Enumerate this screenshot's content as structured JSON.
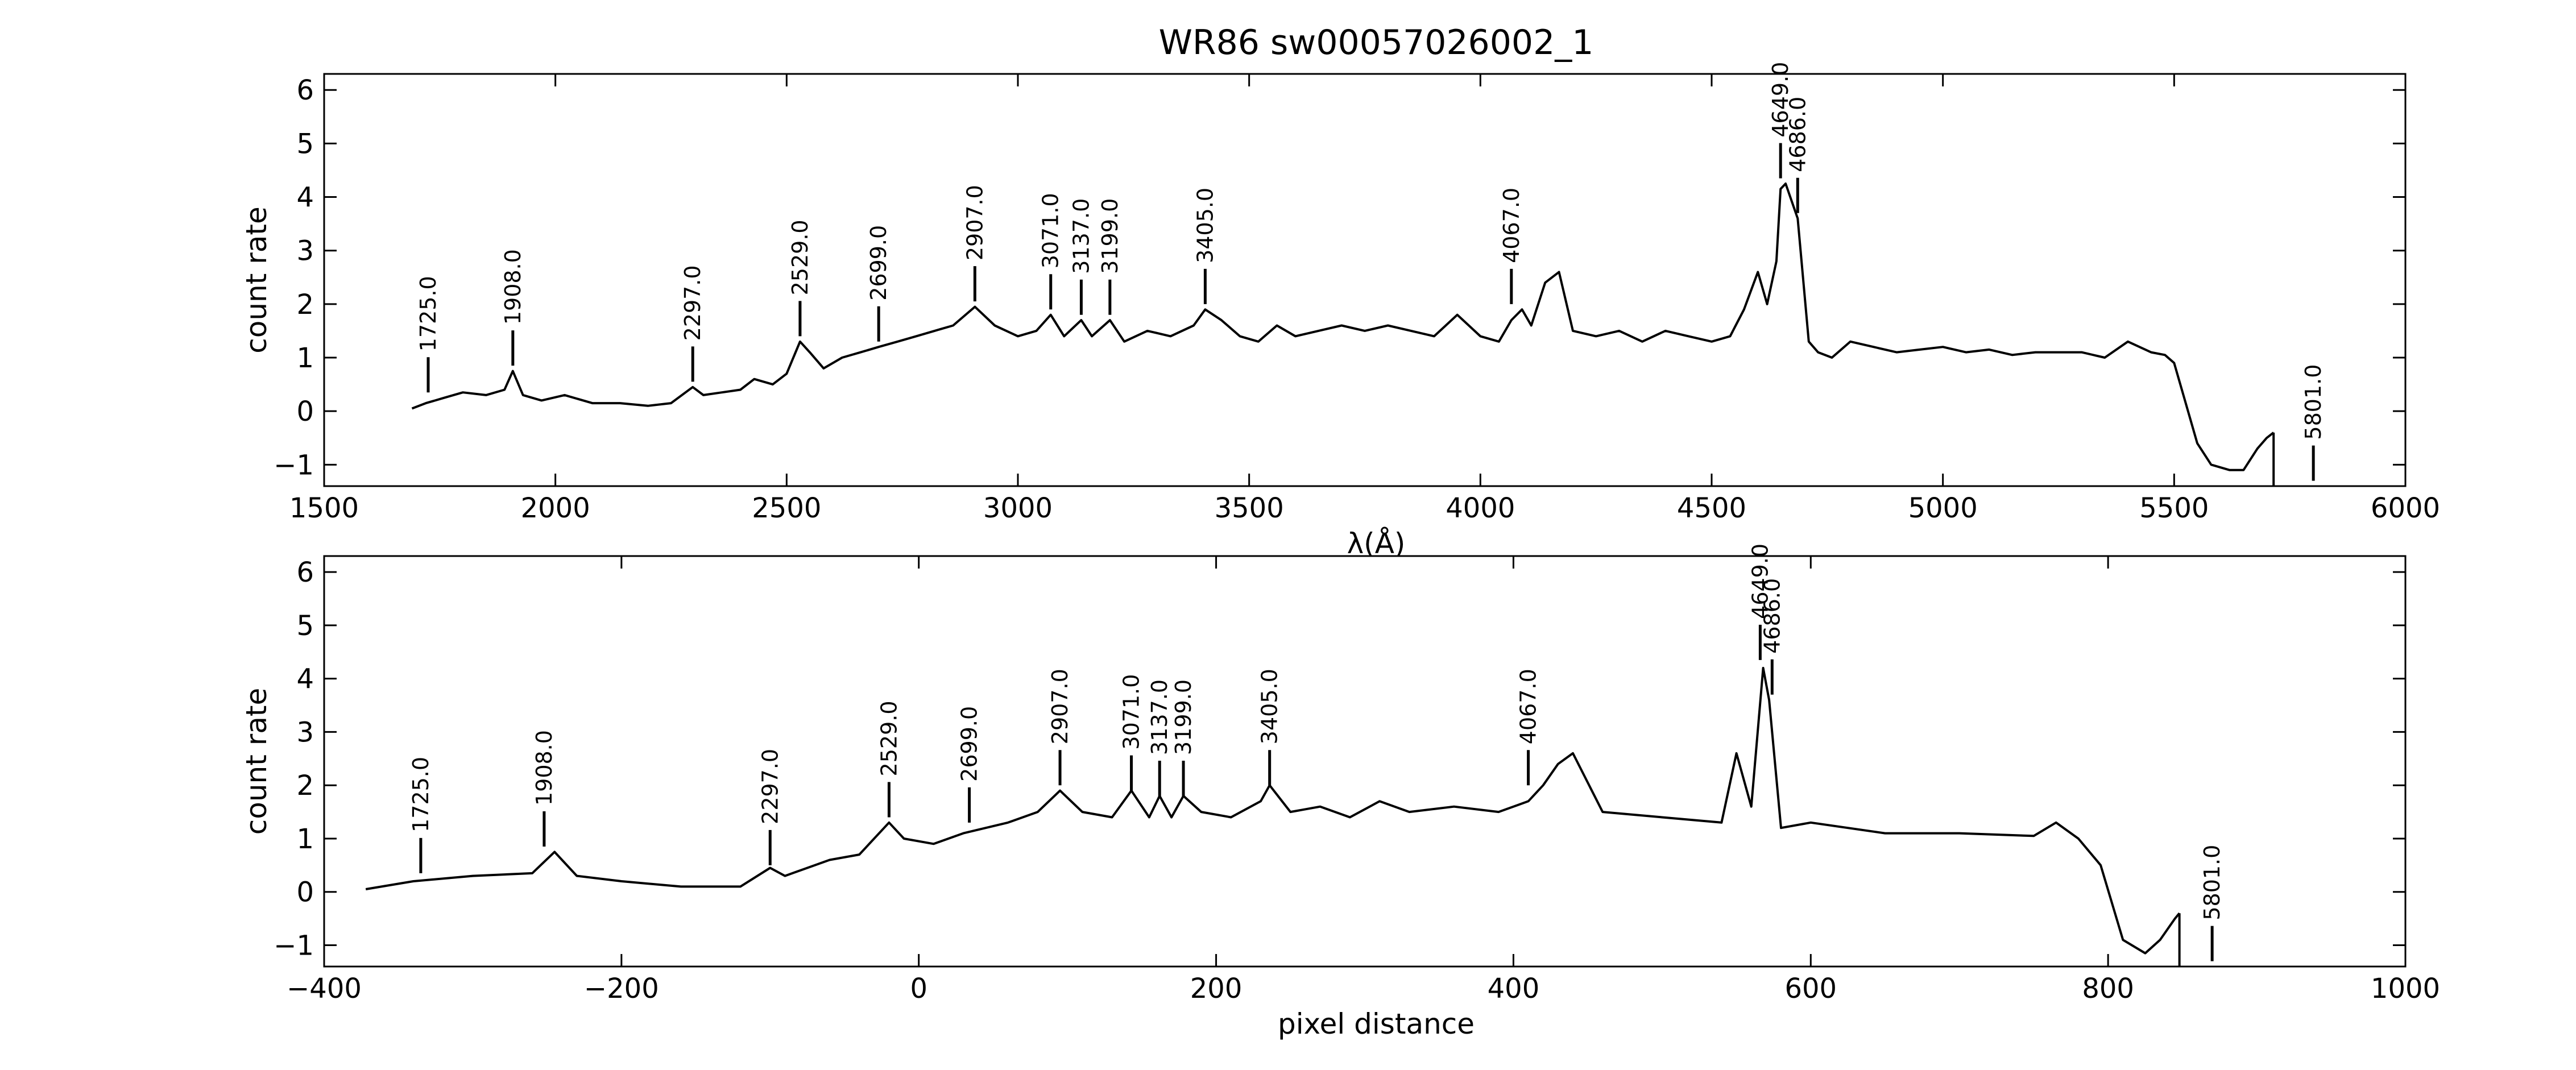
{
  "figure": {
    "title": "WR86  sw00057026002_1"
  },
  "chart_data": [
    {
      "type": "line",
      "panel": "top",
      "xlabel": "λ(Å)",
      "ylabel": "count rate",
      "xlim": [
        1500,
        6000
      ],
      "ylim": [
        -1.4,
        6.3
      ],
      "xticks": [
        "1500",
        "2000",
        "2500",
        "3000",
        "3500",
        "4000",
        "4500",
        "5000",
        "5500",
        "6000"
      ],
      "xtick_values": [
        1500,
        2000,
        2500,
        3000,
        3500,
        4000,
        4500,
        5000,
        5500,
        6000
      ],
      "yticks": [
        "−1",
        "0",
        "1",
        "2",
        "3",
        "4",
        "5",
        "6"
      ],
      "ytick_values": [
        -1,
        0,
        1,
        2,
        3,
        4,
        5,
        6
      ],
      "grid": false,
      "series": [
        {
          "x": [
            1690,
            1720,
            1760,
            1800,
            1850,
            1890,
            1908,
            1930,
            1970,
            2020,
            2080,
            2140,
            2200,
            2250,
            2297,
            2320,
            2360,
            2400,
            2430,
            2470,
            2500,
            2529,
            2550,
            2580,
            2620,
            2660,
            2699,
            2740,
            2780,
            2820,
            2860,
            2907,
            2950,
            3000,
            3040,
            3071,
            3100,
            3137,
            3160,
            3199,
            3230,
            3280,
            3330,
            3380,
            3405,
            3440,
            3480,
            3520,
            3560,
            3600,
            3650,
            3700,
            3750,
            3800,
            3850,
            3900,
            3950,
            4000,
            4040,
            4067,
            4090,
            4110,
            4140,
            4170,
            4200,
            4250,
            4300,
            4350,
            4400,
            4450,
            4500,
            4540,
            4570,
            4600,
            4620,
            4640,
            4649,
            4660,
            4686,
            4710,
            4730,
            4760,
            4800,
            4850,
            4900,
            4950,
            5000,
            5050,
            5100,
            5150,
            5200,
            5250,
            5300,
            5350,
            5400,
            5450,
            5480,
            5500,
            5520,
            5550,
            5580,
            5620,
            5650,
            5680,
            5700,
            5715
          ],
          "y": [
            0.05,
            0.15,
            0.25,
            0.35,
            0.3,
            0.4,
            0.75,
            0.3,
            0.2,
            0.3,
            0.15,
            0.15,
            0.1,
            0.15,
            0.45,
            0.3,
            0.35,
            0.4,
            0.6,
            0.5,
            0.7,
            1.3,
            1.1,
            0.8,
            1.0,
            1.1,
            1.2,
            1.3,
            1.4,
            1.5,
            1.6,
            1.95,
            1.6,
            1.4,
            1.5,
            1.8,
            1.4,
            1.7,
            1.4,
            1.7,
            1.3,
            1.5,
            1.4,
            1.6,
            1.9,
            1.7,
            1.4,
            1.3,
            1.6,
            1.4,
            1.5,
            1.6,
            1.5,
            1.6,
            1.5,
            1.4,
            1.8,
            1.4,
            1.3,
            1.7,
            1.9,
            1.6,
            2.4,
            2.6,
            1.5,
            1.4,
            1.5,
            1.3,
            1.5,
            1.4,
            1.3,
            1.4,
            1.9,
            2.6,
            2.0,
            2.8,
            4.15,
            4.25,
            3.6,
            1.3,
            1.1,
            1.0,
            1.3,
            1.2,
            1.1,
            1.15,
            1.2,
            1.1,
            1.15,
            1.05,
            1.1,
            1.1,
            1.1,
            1.0,
            1.3,
            1.1,
            1.05,
            0.9,
            0.3,
            -0.6,
            -1.0,
            -1.1,
            -1.1,
            -0.7,
            -0.5,
            -0.4
          ]
        }
      ],
      "annotations": [
        {
          "x": 1725,
          "y": 0.35,
          "label": "1725.0"
        },
        {
          "x": 1908,
          "y": 0.85,
          "label": "1908.0"
        },
        {
          "x": 2297,
          "y": 0.55,
          "label": "2297.0"
        },
        {
          "x": 2529,
          "y": 1.4,
          "label": "2529.0"
        },
        {
          "x": 2699,
          "y": 1.3,
          "label": "2699.0"
        },
        {
          "x": 2907,
          "y": 2.05,
          "label": "2907.0"
        },
        {
          "x": 3071,
          "y": 1.9,
          "label": "3071.0"
        },
        {
          "x": 3137,
          "y": 1.8,
          "label": "3137.0"
        },
        {
          "x": 3199,
          "y": 1.8,
          "label": "3199.0"
        },
        {
          "x": 3405,
          "y": 2.0,
          "label": "3405.0"
        },
        {
          "x": 4067,
          "y": 2.0,
          "label": "4067.0"
        },
        {
          "x": 4649,
          "y": 4.35,
          "label": "4649.0"
        },
        {
          "x": 4686,
          "y": 3.7,
          "label": "4686.0"
        },
        {
          "x": 5801,
          "y": -1.3,
          "label": "5801.0"
        }
      ]
    },
    {
      "type": "line",
      "panel": "bottom",
      "xlabel": "pixel distance",
      "ylabel": "count rate",
      "xlim": [
        -400,
        1000
      ],
      "ylim": [
        -1.4,
        6.3
      ],
      "xticks": [
        "−400",
        "−200",
        "0",
        "200",
        "400",
        "600",
        "800",
        "1000"
      ],
      "xtick_values": [
        -400,
        -200,
        0,
        200,
        400,
        600,
        800,
        1000
      ],
      "yticks": [
        "−1",
        "0",
        "1",
        "2",
        "3",
        "4",
        "5",
        "6"
      ],
      "ytick_values": [
        -1,
        0,
        1,
        2,
        3,
        4,
        5,
        6
      ],
      "grid": false,
      "series": [
        {
          "x": [
            -372,
            -340,
            -300,
            -260,
            -245,
            -230,
            -200,
            -160,
            -120,
            -100,
            -90,
            -60,
            -40,
            -20,
            -10,
            10,
            30,
            60,
            80,
            95,
            110,
            130,
            143,
            155,
            162,
            170,
            178,
            190,
            210,
            230,
            236,
            250,
            270,
            290,
            310,
            330,
            360,
            390,
            410,
            420,
            430,
            440,
            460,
            500,
            540,
            550,
            560,
            568,
            572,
            580,
            600,
            650,
            700,
            750,
            765,
            780,
            795,
            810,
            825,
            835,
            845,
            848
          ],
          "y": [
            0.05,
            0.2,
            0.3,
            0.35,
            0.75,
            0.3,
            0.2,
            0.1,
            0.1,
            0.45,
            0.3,
            0.6,
            0.7,
            1.3,
            1.0,
            0.9,
            1.1,
            1.3,
            1.5,
            1.9,
            1.5,
            1.4,
            1.9,
            1.4,
            1.8,
            1.4,
            1.8,
            1.5,
            1.4,
            1.7,
            2.0,
            1.5,
            1.6,
            1.4,
            1.7,
            1.5,
            1.6,
            1.5,
            1.7,
            2.0,
            2.4,
            2.6,
            1.5,
            1.4,
            1.3,
            2.6,
            1.6,
            4.2,
            3.6,
            1.2,
            1.3,
            1.1,
            1.1,
            1.05,
            1.3,
            1.0,
            0.5,
            -0.9,
            -1.15,
            -0.9,
            -0.5,
            -0.4
          ]
        }
      ],
      "annotations": [
        {
          "x": -335,
          "y": 0.35,
          "label": "1725.0"
        },
        {
          "x": -252,
          "y": 0.85,
          "label": "1908.0"
        },
        {
          "x": -100,
          "y": 0.5,
          "label": "2297.0"
        },
        {
          "x": -20,
          "y": 1.4,
          "label": "2529.0"
        },
        {
          "x": 34,
          "y": 1.3,
          "label": "2699.0"
        },
        {
          "x": 95,
          "y": 2.0,
          "label": "2907.0"
        },
        {
          "x": 143,
          "y": 1.9,
          "label": "3071.0"
        },
        {
          "x": 162,
          "y": 1.8,
          "label": "3137.0"
        },
        {
          "x": 178,
          "y": 1.8,
          "label": "3199.0"
        },
        {
          "x": 236,
          "y": 2.0,
          "label": "3405.0"
        },
        {
          "x": 410,
          "y": 2.0,
          "label": "4067.0"
        },
        {
          "x": 566,
          "y": 4.35,
          "label": "4649.0"
        },
        {
          "x": 574,
          "y": 3.7,
          "label": "4686.0"
        },
        {
          "x": 870,
          "y": -1.3,
          "label": "5801.0"
        }
      ]
    }
  ]
}
